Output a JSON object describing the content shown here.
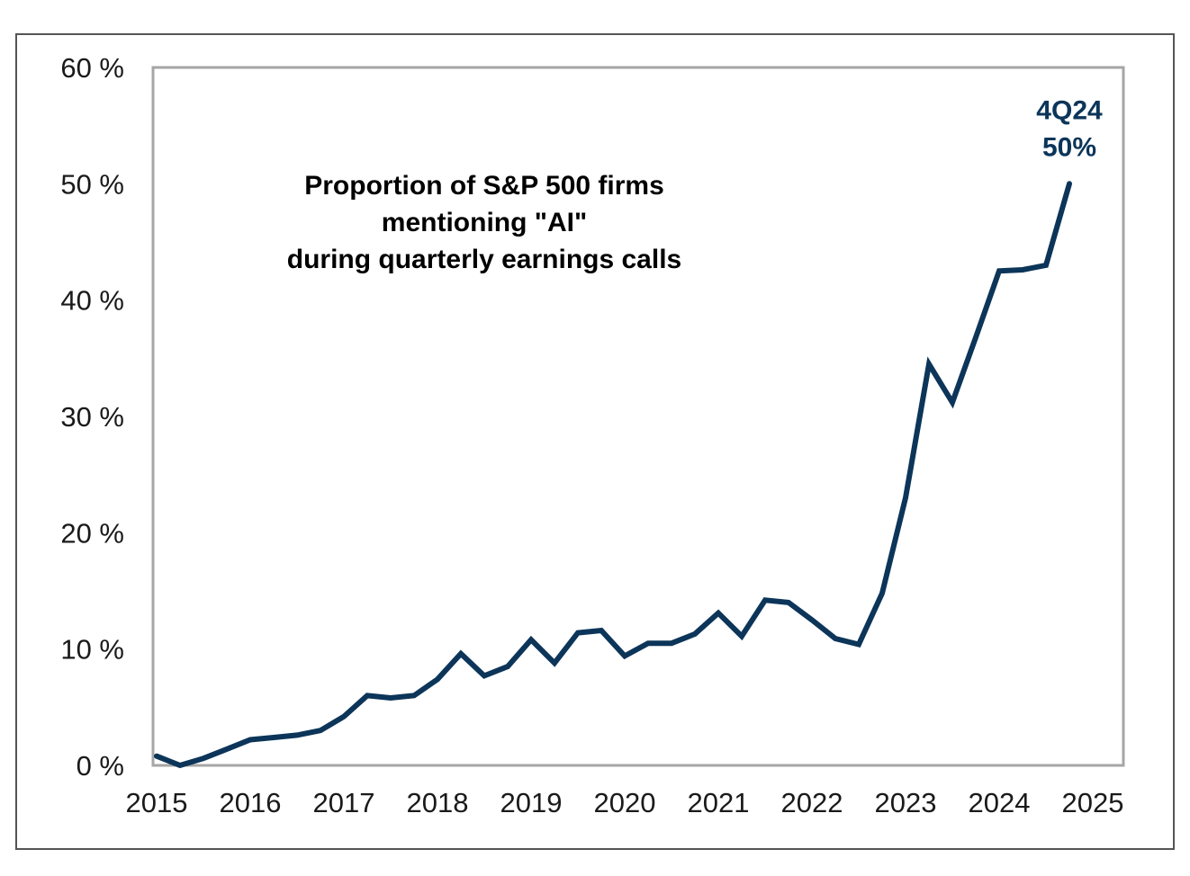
{
  "chart_data": {
    "type": "line",
    "title": [
      "Proportion of S&P 500 firms",
      "mentioning \"AI\"",
      "during quarterly earnings calls"
    ],
    "xlabel": "",
    "ylabel": "",
    "x_ticks": [
      "2015",
      "2016",
      "2017",
      "2018",
      "2019",
      "2020",
      "2021",
      "2022",
      "2023",
      "2024",
      "2025"
    ],
    "y_ticks": [
      "0 %",
      "10 %",
      "20 %",
      "30 %",
      "40 %",
      "50 %",
      "60 %"
    ],
    "xlim": [
      2015,
      2025
    ],
    "ylim": [
      0,
      60
    ],
    "grid": false,
    "legend": null,
    "series": [
      {
        "name": "Share of S&P 500 firms mentioning AI",
        "color": "#0c3559",
        "x_start": 2015.0,
        "x_step": 0.25,
        "values": [
          0.8,
          0.0,
          0.6,
          1.4,
          2.2,
          2.4,
          2.6,
          3.0,
          4.2,
          6.0,
          5.8,
          6.0,
          7.4,
          9.6,
          7.7,
          8.5,
          10.8,
          8.8,
          11.4,
          11.6,
          9.4,
          10.5,
          10.5,
          11.3,
          13.1,
          11.1,
          14.2,
          14.0,
          12.5,
          10.9,
          10.4,
          14.8,
          23.0,
          34.5,
          31.2,
          36.8,
          42.5,
          42.6,
          43.0,
          50.0
        ]
      }
    ],
    "annotations": [
      {
        "text_lines": [
          "4Q24",
          "50%"
        ],
        "x": 2024.75,
        "y": 50,
        "color": "#0c3559"
      }
    ]
  }
}
